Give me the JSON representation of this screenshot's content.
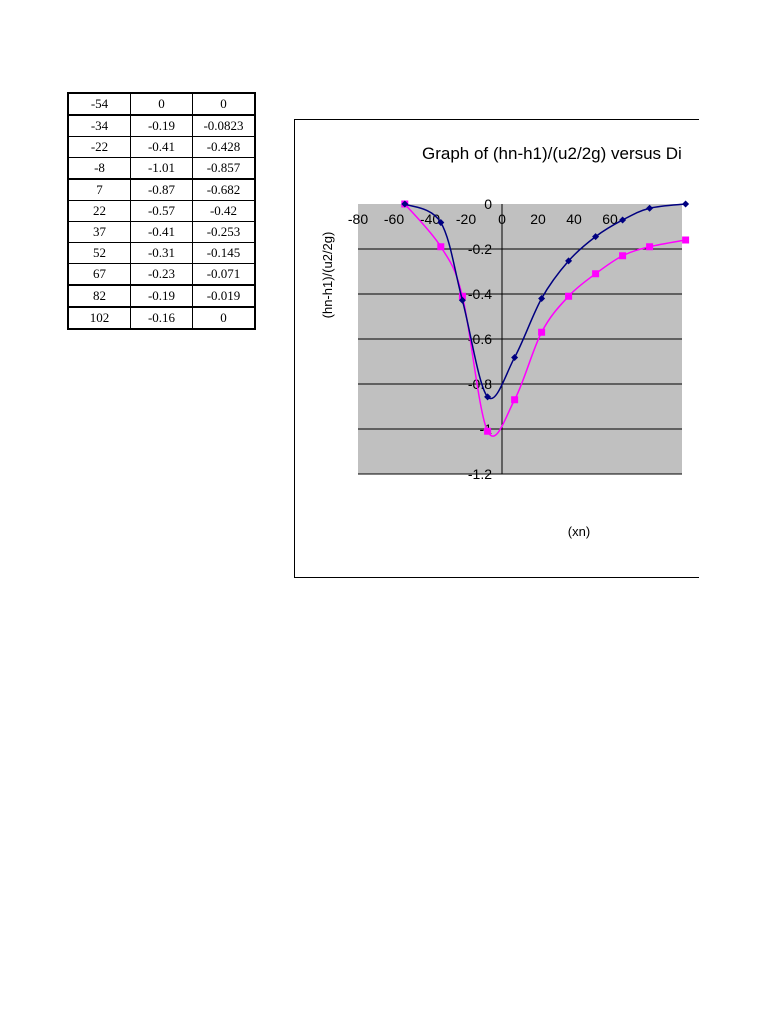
{
  "table": {
    "rows": [
      [
        "-54",
        "0",
        "0"
      ],
      [
        "-34",
        "-0.19",
        "-0.0823"
      ],
      [
        "-22",
        "-0.41",
        "-0.428"
      ],
      [
        "-8",
        "-1.01",
        "-0.857"
      ],
      [
        "7",
        "-0.87",
        "-0.682"
      ],
      [
        "22",
        "-0.57",
        "-0.42"
      ],
      [
        "37",
        "-0.41",
        "-0.253"
      ],
      [
        "52",
        "-0.31",
        "-0.145"
      ],
      [
        "67",
        "-0.23",
        "-0.071"
      ],
      [
        "82",
        "-0.19",
        "-0.019"
      ],
      [
        "102",
        "-0.16",
        "0"
      ]
    ]
  },
  "chart_data": {
    "type": "line",
    "title": "Graph of (hn-h1)/(u2/2g) versus Di",
    "xlabel": "(xn)",
    "ylabel": "(hn-h1)/(u2/2g)",
    "xlim": [
      -80,
      100
    ],
    "ylim": [
      -1.2,
      0
    ],
    "xticks": [
      "-80",
      "-60",
      "-40",
      "-20",
      "0",
      "20",
      "40",
      "60"
    ],
    "yticks": [
      "0",
      "-0.2",
      "-0.4",
      "-0.6",
      "-0.8",
      "-1",
      "-1.2"
    ],
    "grid": "horizontal",
    "plot_background": "#c0c0c0",
    "series": [
      {
        "color": "#000080",
        "marker": "diamond",
        "x": [
          -54,
          -34,
          -22,
          -8,
          7,
          22,
          37,
          52,
          67,
          82,
          102
        ],
        "y": [
          0,
          -0.0823,
          -0.428,
          -0.857,
          -0.682,
          -0.42,
          -0.253,
          -0.145,
          -0.071,
          -0.019,
          0
        ]
      },
      {
        "color": "#ff00ff",
        "marker": "square",
        "x": [
          -54,
          -34,
          -22,
          -8,
          7,
          22,
          37,
          52,
          67,
          82,
          102
        ],
        "y": [
          0,
          -0.19,
          -0.41,
          -1.01,
          -0.87,
          -0.57,
          -0.41,
          -0.31,
          -0.23,
          -0.19,
          -0.16
        ]
      }
    ]
  }
}
